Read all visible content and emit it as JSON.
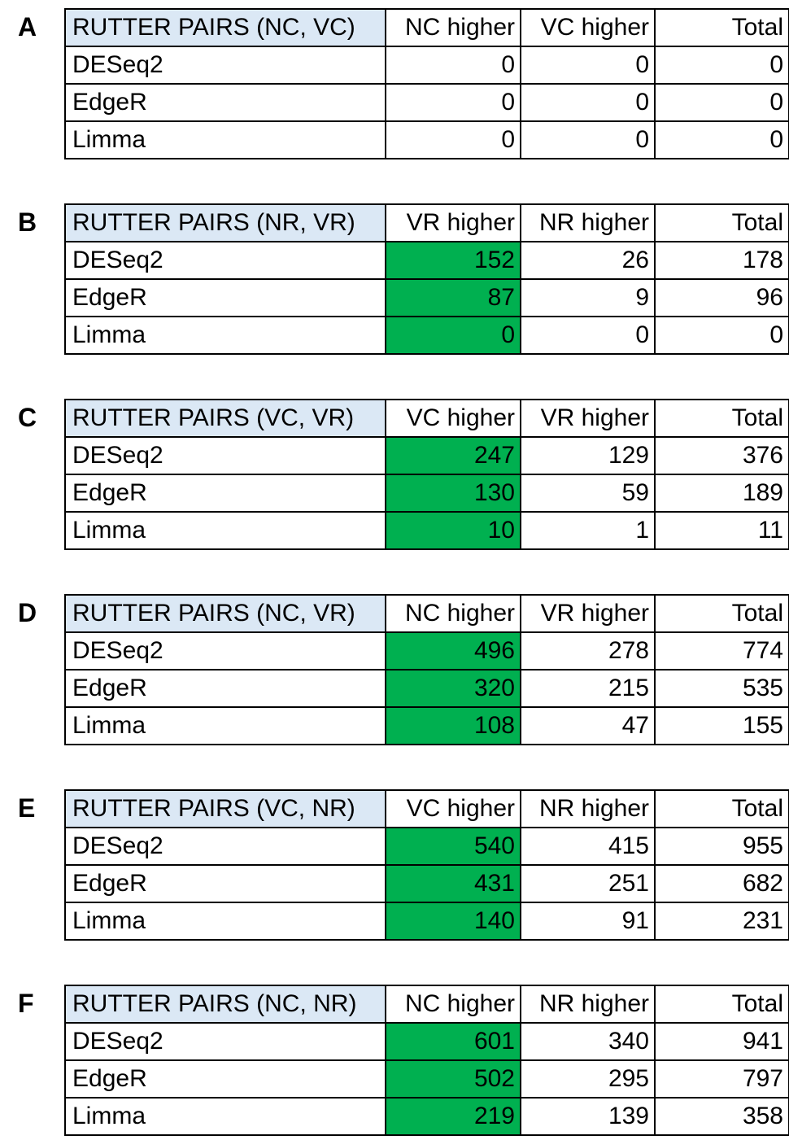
{
  "highlight_color": "#00b050",
  "header_color": "#dbe8f5",
  "panels": [
    {
      "letter": "A",
      "title": "RUTTER PAIRS (NC, VC)",
      "headers": [
        "NC higher",
        "VC higher",
        "Total"
      ],
      "highlight": false,
      "rows": [
        {
          "method": "DESeq2",
          "values": [
            "0",
            "0",
            "0"
          ]
        },
        {
          "method": "EdgeR",
          "values": [
            "0",
            "0",
            "0"
          ]
        },
        {
          "method": "Limma",
          "values": [
            "0",
            "0",
            "0"
          ]
        }
      ]
    },
    {
      "letter": "B",
      "title": "RUTTER PAIRS (NR, VR)",
      "headers": [
        "VR higher",
        "NR higher",
        "Total"
      ],
      "highlight": true,
      "rows": [
        {
          "method": "DESeq2",
          "values": [
            "152",
            "26",
            "178"
          ]
        },
        {
          "method": "EdgeR",
          "values": [
            "87",
            "9",
            "96"
          ]
        },
        {
          "method": "Limma",
          "values": [
            "0",
            "0",
            "0"
          ]
        }
      ]
    },
    {
      "letter": "C",
      "title": "RUTTER PAIRS (VC, VR)",
      "headers": [
        "VC higher",
        "VR higher",
        "Total"
      ],
      "highlight": true,
      "rows": [
        {
          "method": "DESeq2",
          "values": [
            "247",
            "129",
            "376"
          ]
        },
        {
          "method": "EdgeR",
          "values": [
            "130",
            "59",
            "189"
          ]
        },
        {
          "method": "Limma",
          "values": [
            "10",
            "1",
            "11"
          ]
        }
      ]
    },
    {
      "letter": "D",
      "title": "RUTTER PAIRS (NC, VR)",
      "headers": [
        "NC higher",
        "VR higher",
        "Total"
      ],
      "highlight": true,
      "rows": [
        {
          "method": "DESeq2",
          "values": [
            "496",
            "278",
            "774"
          ]
        },
        {
          "method": "EdgeR",
          "values": [
            "320",
            "215",
            "535"
          ]
        },
        {
          "method": "Limma",
          "values": [
            "108",
            "47",
            "155"
          ]
        }
      ]
    },
    {
      "letter": "E",
      "title": "RUTTER PAIRS (VC, NR)",
      "headers": [
        "VC higher",
        "NR higher",
        "Total"
      ],
      "highlight": true,
      "rows": [
        {
          "method": "DESeq2",
          "values": [
            "540",
            "415",
            "955"
          ]
        },
        {
          "method": "EdgeR",
          "values": [
            "431",
            "251",
            "682"
          ]
        },
        {
          "method": "Limma",
          "values": [
            "140",
            "91",
            "231"
          ]
        }
      ]
    },
    {
      "letter": "F",
      "title": "RUTTER PAIRS (NC, NR)",
      "headers": [
        "NC higher",
        "NR higher",
        "Total"
      ],
      "highlight": true,
      "rows": [
        {
          "method": "DESeq2",
          "values": [
            "601",
            "340",
            "941"
          ]
        },
        {
          "method": "EdgeR",
          "values": [
            "502",
            "295",
            "797"
          ]
        },
        {
          "method": "Limma",
          "values": [
            "219",
            "139",
            "358"
          ]
        }
      ]
    }
  ]
}
